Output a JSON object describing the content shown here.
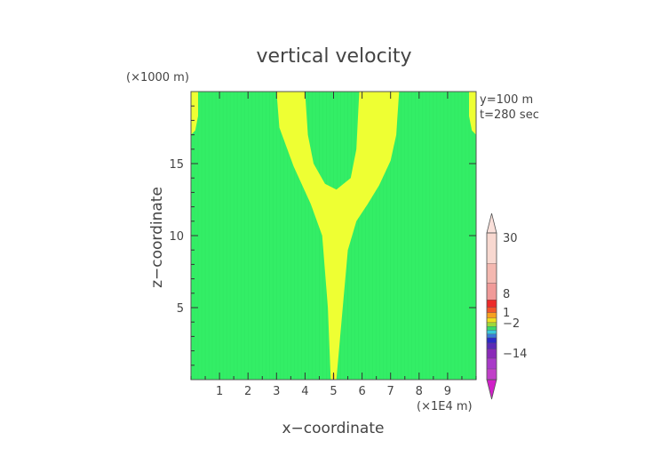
{
  "chart_data": {
    "type": "heatmap",
    "title": "vertical velocity",
    "xlabel": "x−coordinate",
    "ylabel": "z−coordinate",
    "x_unit": "(×1E4 m)",
    "y_unit": "(×1000 m)",
    "annotations": [
      "y=100  m",
      "t=280 sec"
    ],
    "xlim": [
      0,
      10
    ],
    "ylim": [
      0,
      20
    ],
    "x_ticks": [
      1,
      2,
      3,
      4,
      5,
      6,
      7,
      8,
      9
    ],
    "y_ticks": [
      5,
      10,
      15
    ],
    "background_color": "#33ee66",
    "region_color": "#eeff33",
    "regions": [
      {
        "name": "plume",
        "polygon": [
          [
            4.9,
            0
          ],
          [
            5.0,
            0
          ],
          [
            5.1,
            0
          ],
          [
            5.3,
            4.5
          ],
          [
            5.5,
            9
          ],
          [
            5.8,
            11
          ],
          [
            6.2,
            12.2
          ],
          [
            6.6,
            13.5
          ],
          [
            7.0,
            15.2
          ],
          [
            7.2,
            17
          ],
          [
            7.3,
            20
          ],
          [
            5.9,
            20
          ],
          [
            5.8,
            16
          ],
          [
            5.6,
            14
          ],
          [
            5.1,
            13.2
          ],
          [
            4.7,
            13.6
          ],
          [
            4.3,
            15
          ],
          [
            4.1,
            17
          ],
          [
            4.0,
            20
          ],
          [
            3.0,
            20
          ],
          [
            3.1,
            17.5
          ],
          [
            3.6,
            14.8
          ],
          [
            4.2,
            12.2
          ],
          [
            4.6,
            10
          ],
          [
            4.8,
            5
          ]
        ]
      },
      {
        "name": "left-edge",
        "polygon": [
          [
            0,
            17
          ],
          [
            0.15,
            17.3
          ],
          [
            0.25,
            18.3
          ],
          [
            0.25,
            20
          ],
          [
            0,
            20
          ]
        ]
      },
      {
        "name": "right-edge",
        "polygon": [
          [
            10,
            17
          ],
          [
            9.85,
            17.3
          ],
          [
            9.75,
            18.3
          ],
          [
            9.75,
            20
          ],
          [
            10,
            20
          ]
        ]
      }
    ],
    "colorbar": {
      "labels": [
        {
          "value": 30,
          "text": "30"
        },
        {
          "value": 8,
          "text": "8"
        },
        {
          "value": 1,
          "text": "1"
        },
        {
          "value": -2,
          "text": "−2"
        },
        {
          "value": -14,
          "text": "−14"
        }
      ],
      "segments": [
        {
          "color": "#f8d8d0",
          "height": 2
        },
        {
          "color": "#f4b8b0",
          "height": 1.3
        },
        {
          "color": "#f09a98",
          "height": 1.1
        },
        {
          "color": "#ec2a2a",
          "height": 0.5
        },
        {
          "color": "#f2552a",
          "height": 0.35
        },
        {
          "color": "#f6a020",
          "height": 0.35
        },
        {
          "color": "#eedd20",
          "height": 0.3
        },
        {
          "color": "#9ed83a",
          "height": 0.25
        },
        {
          "color": "#3ad86a",
          "height": 0.25
        },
        {
          "color": "#3ac8d8",
          "height": 0.25
        },
        {
          "color": "#3a7ad8",
          "height": 0.25
        },
        {
          "color": "#2a2ac8",
          "height": 0.35
        },
        {
          "color": "#5a2ab8",
          "height": 0.4
        },
        {
          "color": "#8a2ab8",
          "height": 0.6
        },
        {
          "color": "#a83ac8",
          "height": 0.7
        },
        {
          "color": "#c040c8",
          "height": 0.7
        }
      ],
      "top_color": "#fae0da",
      "bottom_color": "#d020c8"
    }
  }
}
